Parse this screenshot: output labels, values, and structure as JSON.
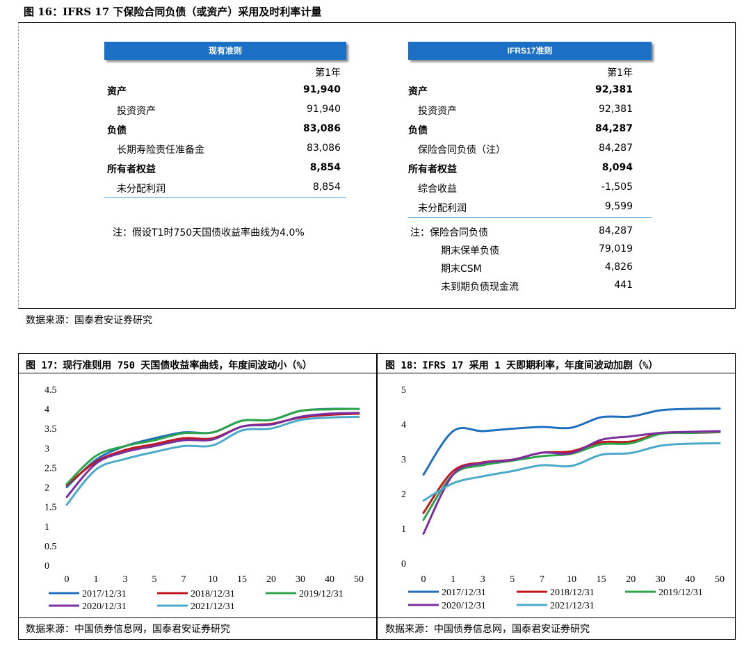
{
  "figure16": {
    "title": "图 16：IFRS 17 下保险合同负债（或资产）采用及时利率计量",
    "source": "数据来源：国泰君安证券研究",
    "left": {
      "header": "现有准则",
      "col_header": "第1年",
      "rows": [
        {
          "label": "资产",
          "value": "91,940",
          "bold": true
        },
        {
          "label": "投资资产",
          "value": "91,940",
          "bold": false
        },
        {
          "label": "负债",
          "value": "83,086",
          "bold": true
        },
        {
          "label": "长期寿险责任准备金",
          "value": "83,086",
          "bold": false
        },
        {
          "label": "所有者权益",
          "value": "8,854",
          "bold": true
        },
        {
          "label": "未分配利润",
          "value": "8,854",
          "bold": false
        }
      ],
      "note": "注：假设T1时750天国债收益率曲线为4.0%"
    },
    "right": {
      "header": "IFRS17准则",
      "col_header": "第1年",
      "rows": [
        {
          "label": "资产",
          "value": "92,381",
          "bold": true
        },
        {
          "label": "投资资产",
          "value": "92,381",
          "bold": false
        },
        {
          "label": "负债",
          "value": "84,287",
          "bold": true
        },
        {
          "label": "保险合同负债（注）",
          "value": "84,287",
          "bold": false
        },
        {
          "label": "所有者权益",
          "value": "8,094",
          "bold": true
        },
        {
          "label": "综合收益",
          "value": "-1,505",
          "bold": false
        },
        {
          "label": "未分配利润",
          "value": "9,599",
          "bold": false
        }
      ],
      "note_rows": [
        {
          "label": "注：保险合同负债",
          "value": "84,287"
        },
        {
          "label": "期末保单负债",
          "value": "79,019"
        },
        {
          "label": "期末CSM",
          "value": "4,826"
        },
        {
          "label": "未到期负债现金流",
          "value": "441"
        }
      ]
    }
  },
  "figure17": {
    "title": "图 17：现行准则用 750 天国债收益率曲线，年度间波动小（%）",
    "source": "数据来源：中国债券信息网，国泰君安证券研究"
  },
  "figure18": {
    "title": "图 18：IFRS 17 采用 1 天即期利率，年度间波动加剧（%）",
    "source": "数据来源：中国债券信息网，国泰君安证券研究"
  },
  "chart_data": [
    {
      "type": "line",
      "categories": [
        "0",
        "1",
        "3",
        "5",
        "7",
        "10",
        "15",
        "20",
        "30",
        "40",
        "50"
      ],
      "ylim": [
        0,
        4.5
      ],
      "yticks": [
        "0",
        "0.5",
        "1",
        "1.5",
        "2",
        "2.5",
        "3",
        "3.5",
        "4",
        "4.5"
      ],
      "series": [
        {
          "name": "2017/12/31",
          "color": "#1f6fbf",
          "values": [
            2.0,
            2.7,
            3.05,
            3.25,
            3.4,
            3.4,
            3.7,
            3.72,
            3.95,
            4.0,
            4.0
          ]
        },
        {
          "name": "2018/12/31",
          "color": "#c0161c",
          "values": [
            2.05,
            2.65,
            2.95,
            3.1,
            3.25,
            3.25,
            3.55,
            3.62,
            3.78,
            3.85,
            3.88
          ]
        },
        {
          "name": "2019/12/31",
          "color": "#2ca54a",
          "values": [
            2.08,
            2.8,
            3.05,
            3.2,
            3.38,
            3.4,
            3.7,
            3.72,
            3.95,
            3.99,
            4.0
          ]
        },
        {
          "name": "2020/12/31",
          "color": "#7b2f9e",
          "values": [
            1.75,
            2.6,
            2.9,
            3.05,
            3.2,
            3.22,
            3.55,
            3.6,
            3.8,
            3.88,
            3.9
          ]
        },
        {
          "name": "2021/12/31",
          "color": "#4aaac8",
          "values": [
            1.55,
            2.45,
            2.72,
            2.9,
            3.05,
            3.07,
            3.45,
            3.5,
            3.72,
            3.78,
            3.8
          ]
        }
      ]
    },
    {
      "type": "line",
      "categories": [
        "0",
        "1",
        "3",
        "5",
        "7",
        "10",
        "15",
        "20",
        "30",
        "40",
        "50"
      ],
      "ylim": [
        0,
        5
      ],
      "yticks": [
        "0",
        "1",
        "2",
        "3",
        "4",
        "5"
      ],
      "series": [
        {
          "name": "2017/12/31",
          "color": "#1f6fbf",
          "values": [
            2.55,
            3.8,
            3.8,
            3.87,
            3.92,
            3.9,
            4.2,
            4.22,
            4.4,
            4.44,
            4.45
          ]
        },
        {
          "name": "2018/12/31",
          "color": "#c0161c",
          "values": [
            1.45,
            2.65,
            2.9,
            2.98,
            3.18,
            3.22,
            3.48,
            3.5,
            3.74,
            3.75,
            3.77
          ]
        },
        {
          "name": "2019/12/31",
          "color": "#2ca54a",
          "values": [
            1.25,
            2.55,
            2.82,
            2.95,
            3.08,
            3.15,
            3.42,
            3.45,
            3.72,
            3.75,
            3.78
          ]
        },
        {
          "name": "2020/12/31",
          "color": "#7b2f9e",
          "values": [
            0.85,
            2.55,
            2.88,
            2.97,
            3.18,
            3.17,
            3.55,
            3.65,
            3.75,
            3.78,
            3.8
          ]
        },
        {
          "name": "2021/12/31",
          "color": "#4aaac8",
          "values": [
            1.8,
            2.3,
            2.5,
            2.65,
            2.82,
            2.8,
            3.12,
            3.17,
            3.38,
            3.44,
            3.45
          ]
        }
      ]
    }
  ]
}
